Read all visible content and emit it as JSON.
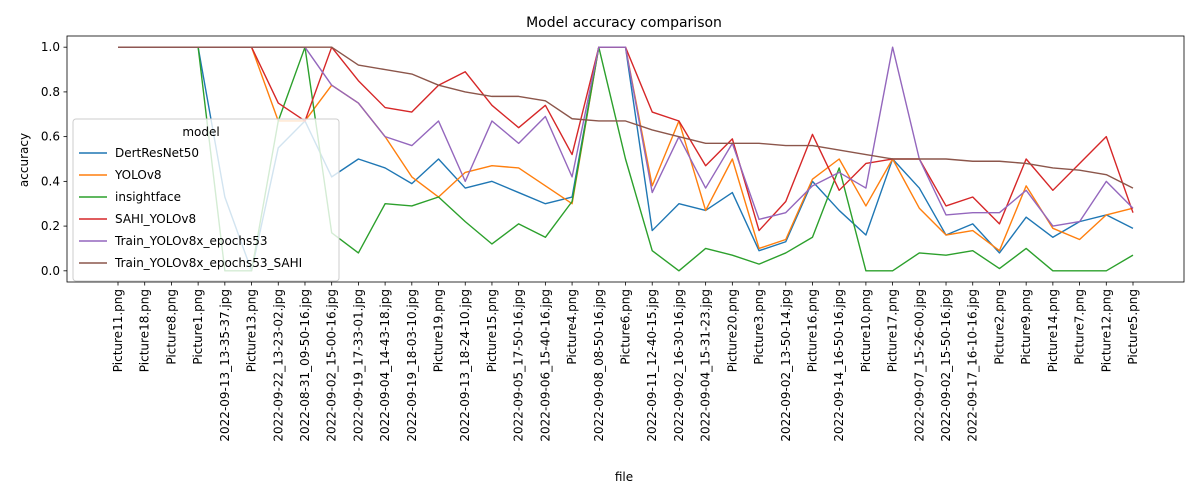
{
  "chart_data": {
    "type": "line",
    "title": "Model accuracy comparison",
    "xlabel": "file",
    "ylabel": "accuracy",
    "ylim": [
      -0.05,
      1.05
    ],
    "yticks": [
      0.0,
      0.2,
      0.4,
      0.6,
      0.8,
      1.0
    ],
    "grid": false,
    "legend_title": "model",
    "legend_position": "center-left",
    "categories": [
      "Picture11.png",
      "Picture18.png",
      "Picture8.png",
      "Picture1.png",
      "2022-09-13_13-35-37.jpg",
      "Picture13.png",
      "2022-09-22_13-23-02.jpg",
      "2022-08-31_09-50-16.jpg",
      "2022-09-02_15-00-16.jpg",
      "2022-09-19_17-33-01.jpg",
      "2022-09-04_14-43-18.jpg",
      "2022-09-19_18-03-10.jpg",
      "Picture19.png",
      "2022-09-13_18-24-10.jpg",
      "Picture15.png",
      "2022-09-05_17-50-16.jpg",
      "2022-09-06_15-40-16.jpg",
      "Picture4.png",
      "2022-09-08_08-50-16.jpg",
      "Picture6.png",
      "2022-09-11_12-40-15.jpg",
      "2022-09-02_16-30-16.jpg",
      "2022-09-04_15-31-23.jpg",
      "Picture20.png",
      "Picture3.png",
      "2022-09-02_13-50-14.jpg",
      "Picture16.png",
      "2022-09-14_16-50-16.jpg",
      "Picture10.png",
      "Picture17.png",
      "2022-09-07_15-26-00.jpg",
      "2022-09-02_15-50-16.jpg",
      "2022-09-17_16-10-16.jpg",
      "Picture2.png",
      "Picture9.png",
      "Picture14.png",
      "Picture7.png",
      "Picture12.png",
      "Picture5.png"
    ],
    "series": [
      {
        "name": "DertResNet50",
        "color": "#1f77b4",
        "values": [
          1.0,
          1.0,
          1.0,
          1.0,
          0.33,
          0.0,
          0.55,
          0.67,
          0.42,
          0.5,
          0.46,
          0.39,
          0.5,
          0.37,
          0.4,
          0.35,
          0.3,
          0.33,
          1.0,
          1.0,
          0.18,
          0.3,
          0.27,
          0.35,
          0.09,
          0.13,
          0.4,
          0.27,
          0.16,
          0.5,
          0.37,
          0.16,
          0.21,
          0.08,
          0.24,
          0.15,
          0.22,
          0.25,
          0.19
        ]
      },
      {
        "name": "YOLOv8",
        "color": "#ff7f0e",
        "values": [
          1.0,
          1.0,
          1.0,
          1.0,
          1.0,
          1.0,
          0.67,
          0.67,
          0.83,
          0.75,
          0.6,
          0.42,
          0.33,
          0.44,
          0.47,
          0.46,
          0.38,
          0.3,
          1.0,
          1.0,
          0.38,
          0.67,
          0.27,
          0.5,
          0.1,
          0.14,
          0.41,
          0.5,
          0.29,
          0.5,
          0.28,
          0.16,
          0.18,
          0.09,
          0.38,
          0.19,
          0.14,
          0.25,
          0.28
        ]
      },
      {
        "name": "insightface",
        "color": "#2ca02c",
        "values": [
          1.0,
          1.0,
          1.0,
          1.0,
          0.0,
          0.0,
          0.67,
          1.0,
          0.17,
          0.08,
          0.3,
          0.29,
          0.33,
          0.22,
          0.12,
          0.21,
          0.15,
          0.31,
          1.0,
          0.5,
          0.09,
          0.0,
          0.1,
          0.07,
          0.03,
          0.08,
          0.15,
          0.46,
          0.0,
          0.0,
          0.08,
          0.07,
          0.09,
          0.01,
          0.1,
          0.0,
          0.0,
          0.0,
          0.07
        ]
      },
      {
        "name": "SAHI_YOLOv8",
        "color": "#d62728",
        "values": [
          1.0,
          1.0,
          1.0,
          1.0,
          1.0,
          1.0,
          0.75,
          0.67,
          1.0,
          0.85,
          0.73,
          0.71,
          0.83,
          0.89,
          0.74,
          0.64,
          0.74,
          0.52,
          1.0,
          1.0,
          0.71,
          0.67,
          0.47,
          0.59,
          0.18,
          0.31,
          0.61,
          0.36,
          0.48,
          0.5,
          0.5,
          0.29,
          0.33,
          0.21,
          0.5,
          0.36,
          0.48,
          0.6,
          0.26
        ]
      },
      {
        "name": "Train_YOLOv8x_epochs53",
        "color": "#9467bd",
        "values": [
          1.0,
          1.0,
          1.0,
          1.0,
          1.0,
          1.0,
          1.0,
          1.0,
          0.83,
          0.75,
          0.6,
          0.56,
          0.67,
          0.4,
          0.67,
          0.57,
          0.69,
          0.42,
          1.0,
          1.0,
          0.35,
          0.6,
          0.37,
          0.57,
          0.23,
          0.26,
          0.38,
          0.44,
          0.37,
          1.0,
          0.5,
          0.25,
          0.26,
          0.26,
          0.36,
          0.2,
          0.22,
          0.4,
          0.28
        ]
      },
      {
        "name": "Train_YOLOv8x_epochs53_SAHI",
        "color": "#8c564b",
        "values": [
          1.0,
          1.0,
          1.0,
          1.0,
          1.0,
          1.0,
          1.0,
          1.0,
          1.0,
          0.92,
          0.9,
          0.88,
          0.83,
          0.8,
          0.78,
          0.78,
          0.76,
          0.68,
          0.67,
          0.67,
          0.63,
          0.6,
          0.57,
          0.57,
          0.57,
          0.56,
          0.56,
          0.54,
          0.52,
          0.5,
          0.5,
          0.5,
          0.49,
          0.49,
          0.48,
          0.46,
          0.45,
          0.43,
          0.37
        ]
      }
    ]
  }
}
